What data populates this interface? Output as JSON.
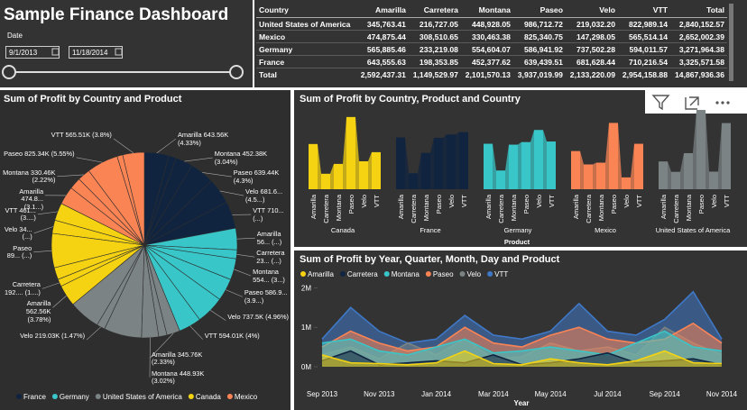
{
  "header": {
    "title": "Sample Finance Dashboard"
  },
  "slicer": {
    "label": "Date",
    "start": "9/1/2013",
    "end": "11/18/2014"
  },
  "table": {
    "columns": [
      "Country",
      "Amarilla",
      "Carretera",
      "Montana",
      "Paseo",
      "Velo",
      "VTT",
      "Total"
    ],
    "rows": [
      [
        "United States of America",
        "345,763.41",
        "216,727.05",
        "448,928.05",
        "986,712.72",
        "219,032.20",
        "822,989.14",
        "2,840,152.57"
      ],
      [
        "Mexico",
        "474,875.44",
        "308,510.65",
        "330,463.38",
        "825,340.75",
        "147,298.05",
        "565,514.14",
        "2,652,002.39"
      ],
      [
        "Germany",
        "565,885.46",
        "233,219.08",
        "554,604.07",
        "586,941.92",
        "737,502.28",
        "594,011.57",
        "3,271,964.38"
      ],
      [
        "France",
        "643,555.63",
        "198,353.85",
        "452,377.62",
        "639,439.51",
        "681,628.44",
        "710,216.54",
        "3,325,571.58"
      ],
      [
        "Total",
        "2,592,437.31",
        "1,149,529.97",
        "2,101,570.13",
        "3,937,019.99",
        "2,133,220.09",
        "2,954,158.88",
        "14,867,936.36"
      ]
    ]
  },
  "chart_data": [
    {
      "type": "pie",
      "title": "Sum of Profit by Country and Product",
      "series": [
        {
          "name": "France",
          "color": "#102440",
          "values": [
            643555.63,
            198353.85,
            452377.62,
            639439.51,
            681628.44,
            710216.54
          ],
          "value_labels": [
            "Amarilla 643.56K (4.33%)",
            null,
            "Montana 452.38K (3.04%)",
            "Paseo 639.44K (4.3%)",
            "Velo 681.6... (4.5...)",
            "VTT 710... (...)"
          ]
        },
        {
          "name": "Germany",
          "color": "#38c6c8",
          "values": [
            565885.46,
            233219.08,
            554604.07,
            586941.92,
            737502.28,
            594011.57
          ],
          "value_labels": [
            "Amarilla 56... (...)",
            "Carretera 23... (...)",
            "Montana 554... (3...)",
            "Paseo 586.9... (3.9...)",
            "Velo 737.5K (4.96%)",
            "VTT 594.01K (4%)"
          ]
        },
        {
          "name": "United States of America",
          "color": "#7b8384",
          "values": [
            345763.41,
            216727.05,
            448928.05,
            986712.72,
            219032.2,
            822989.14
          ],
          "value_labels": [
            "Amarilla 345.76K (2.33%)",
            null,
            "Montana 448.93K (3.02%)",
            null,
            "Velo 219.03K (1.47%)",
            null
          ]
        },
        {
          "name": "Canada",
          "color": "#f5d312",
          "values": [
            562560,
            192719.34,
            315197.01,
            898585.09,
            347759.12,
            461000
          ],
          "value_labels": [
            "Amarilla 562.56K (3.78%)",
            "Carretera 192.... (1....)",
            null,
            "Paseo 89... (...)",
            "Velo 34... (...)",
            "VTT 461... (3....)"
          ]
        },
        {
          "name": "Mexico",
          "color": "#fb8455",
          "values": [
            474875.44,
            308510.65,
            330463.38,
            825340.75,
            147298.05,
            565514.14
          ],
          "value_labels": [
            "Amarilla 474.8... (3.1...)",
            null,
            "Montana 330.46K (2.22%)",
            "Paseo 825.34K (5.55%)",
            null,
            "VTT 565.51K (3.8%)"
          ]
        }
      ]
    },
    {
      "type": "ribbon",
      "title": "Sum of Profit by Country, Product and Country",
      "xlabel": "Product",
      "categories": [
        "Amarilla",
        "Carretera",
        "Montana",
        "Paseo",
        "Velo",
        "VTT"
      ],
      "series": [
        {
          "name": "Canada",
          "color": "#f5d312",
          "values": [
            562560,
            192719.34,
            315197.01,
            898585.09,
            347759.12,
            461000
          ]
        },
        {
          "name": "France",
          "color": "#102440",
          "values": [
            643555.63,
            198353.85,
            452377.62,
            639439.51,
            681628.44,
            710216.54
          ]
        },
        {
          "name": "Germany",
          "color": "#38c6c8",
          "values": [
            565885.46,
            233219.08,
            554604.07,
            586941.92,
            737502.28,
            594011.57
          ]
        },
        {
          "name": "Mexico",
          "color": "#fb8455",
          "values": [
            474875.44,
            308510.65,
            330463.38,
            825340.75,
            147298.05,
            565514.14
          ]
        },
        {
          "name": "United States of America",
          "color": "#7b8384",
          "values": [
            345763.41,
            216727.05,
            448928.05,
            986712.72,
            219032.2,
            822989.14
          ]
        }
      ]
    },
    {
      "type": "area",
      "title": "Sum of Profit by Year, Quarter, Month, Day and Product",
      "xlabel": "Year",
      "categories": [
        "Sep 2013",
        null,
        "Nov 2013",
        null,
        "Jan 2014",
        null,
        "Mar 2014",
        null,
        "May 2014",
        null,
        "Jul 2014",
        null,
        "Sep 2014",
        null,
        "Nov 2014"
      ],
      "ylim": [
        0,
        2100000
      ],
      "yticks": [
        {
          "value": 0,
          "label": "0M"
        },
        {
          "value": 1000000,
          "label": "1M"
        },
        {
          "value": 2000000,
          "label": "2M"
        }
      ],
      "grid": false,
      "series": [
        {
          "name": "Amarilla",
          "color": "#f5d312",
          "values": [
            300000,
            100000,
            80000,
            50000,
            100000,
            400000,
            80000,
            50000,
            200000,
            100000,
            50000,
            150000,
            400000,
            100000,
            80000
          ]
        },
        {
          "name": "Carretera",
          "color": "#102440",
          "values": [
            150000,
            400000,
            50000,
            100000,
            150000,
            100000,
            300000,
            50000,
            100000,
            200000,
            350000,
            100000,
            150000,
            200000,
            50000
          ]
        },
        {
          "name": "Montana",
          "color": "#38c6c8",
          "values": [
            600000,
            700000,
            400000,
            300000,
            500000,
            700000,
            350000,
            400000,
            500000,
            400000,
            300000,
            600000,
            900000,
            500000,
            400000
          ]
        },
        {
          "name": "Paseo",
          "color": "#fb8455",
          "values": [
            500000,
            900000,
            600000,
            400000,
            500000,
            1000000,
            600000,
            500000,
            800000,
            1000000,
            700000,
            600000,
            700000,
            1100000,
            600000
          ]
        },
        {
          "name": "Velo",
          "color": "#7b8384",
          "values": [
            300000,
            500000,
            200000,
            600000,
            300000,
            700000,
            200000,
            250000,
            600000,
            400000,
            500000,
            300000,
            1000000,
            600000,
            300000
          ]
        },
        {
          "name": "VTT",
          "color": "#3f78c6",
          "values": [
            700000,
            1500000,
            900000,
            600000,
            700000,
            1300000,
            800000,
            700000,
            900000,
            1600000,
            900000,
            800000,
            1200000,
            1900000,
            700000
          ]
        }
      ]
    }
  ]
}
